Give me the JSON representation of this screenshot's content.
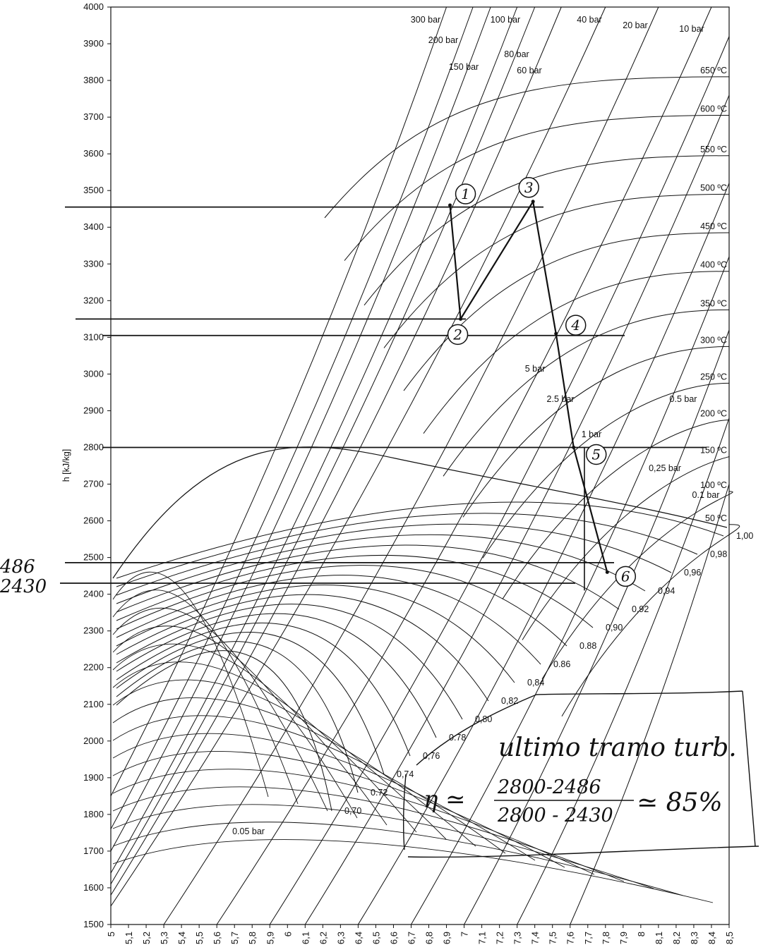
{
  "chart_data": {
    "type": "line",
    "title": "",
    "ylabel": "h [kJ/kg]",
    "xlabel": "",
    "xlim": [
      5.0,
      8.5
    ],
    "ylim": [
      1500,
      4000
    ],
    "x_ticks": [
      "5",
      "5,1",
      "5,2",
      "5,3",
      "5,4",
      "5,5",
      "5,6",
      "5,7",
      "5,8",
      "5,9",
      "6",
      "6,1",
      "6,2",
      "6,3",
      "6,4",
      "6,5",
      "6,6",
      "6,7",
      "6,8",
      "6,9",
      "7",
      "7,1",
      "7,2",
      "7,3",
      "7,4",
      "7,5",
      "7,6",
      "7,7",
      "7,8",
      "7,9",
      "8",
      "8,1",
      "8,2",
      "8,3",
      "8,4",
      "8,5"
    ],
    "y_ticks": [
      "1500",
      "1600",
      "1700",
      "1800",
      "1900",
      "2000",
      "2100",
      "2200",
      "2300",
      "2400",
      "2500",
      "2600",
      "2700",
      "2800",
      "2900",
      "3000",
      "3100",
      "3200",
      "3300",
      "3400",
      "3500",
      "3600",
      "3700",
      "3800",
      "3900",
      "4000"
    ],
    "grid": "off",
    "isobars": [
      {
        "label": "300 bar",
        "s": [
          5.0,
          6.9
        ],
        "h": [
          1850,
          4000
        ]
      },
      {
        "label": "200 bar",
        "s": [
          5.0,
          7.05
        ],
        "h": [
          1760,
          4000
        ]
      },
      {
        "label": "150 bar",
        "s": [
          5.0,
          7.15
        ],
        "h": [
          1700,
          4000
        ]
      },
      {
        "label": "100 bar",
        "s": [
          5.0,
          7.3
        ],
        "h": [
          1640,
          4000
        ]
      },
      {
        "label": "80 bar",
        "s": [
          5.0,
          7.4
        ],
        "h": [
          1610,
          4000
        ]
      },
      {
        "label": "60 bar",
        "s": [
          5.0,
          7.55
        ],
        "h": [
          1580,
          4000
        ]
      },
      {
        "label": "40 bar",
        "s": [
          5.0,
          7.8
        ],
        "h": [
          1550,
          4000
        ]
      },
      {
        "label": "20 bar",
        "s": [
          5.3,
          8.1
        ],
        "h": [
          1500,
          4000
        ]
      },
      {
        "label": "10 bar",
        "s": [
          5.6,
          8.4
        ],
        "h": [
          1500,
          4000
        ]
      },
      {
        "label": "5 bar",
        "s": [
          5.9,
          8.5
        ],
        "h": [
          1500,
          3920
        ]
      },
      {
        "label": "2.5 bar",
        "s": [
          6.1,
          8.5
        ],
        "h": [
          1500,
          3760
        ]
      },
      {
        "label": "1 bar",
        "s": [
          6.4,
          8.5
        ],
        "h": [
          1500,
          3520
        ]
      },
      {
        "label": "0.5 bar",
        "s": [
          6.7,
          8.5
        ],
        "h": [
          1500,
          3320
        ]
      },
      {
        "label": "0,25 bar",
        "s": [
          7.0,
          8.5
        ],
        "h": [
          1500,
          3120
        ]
      },
      {
        "label": "0.1 bar",
        "s": [
          7.3,
          8.5
        ],
        "h": [
          1500,
          2880
        ]
      },
      {
        "label": "0.05 bar",
        "s": [
          7.6,
          8.5
        ],
        "h": [
          1500,
          2700
        ]
      }
    ],
    "isotherms": [
      {
        "label": "650 ºC",
        "h": 3810
      },
      {
        "label": "600 ºC",
        "h": 3705
      },
      {
        "label": "550 ºC",
        "h": 3595
      },
      {
        "label": "500 ºC",
        "h": 3490
      },
      {
        "label": "450 ºC",
        "h": 3385
      },
      {
        "label": "400 ºC",
        "h": 3280
      },
      {
        "label": "350 ºC",
        "h": 3175
      },
      {
        "label": "300 ºC",
        "h": 3075
      },
      {
        "label": "250 ºC",
        "h": 2975
      },
      {
        "label": "200 ºC",
        "h": 2875
      },
      {
        "label": "150 ºC",
        "h": 2775
      },
      {
        "label": "100 ºC",
        "h": 2680
      },
      {
        "label": "50 ºC",
        "h": 2590
      }
    ],
    "quality_labels": [
      "1,00",
      "0,98",
      "0,96",
      "0,94",
      "0,92",
      "0,90",
      "0.88",
      "0.86",
      "0,84",
      "0,82",
      "0,80",
      "0.78",
      "0,76",
      "0,74",
      "0.72",
      "0,70"
    ],
    "process_points": [
      {
        "label": "1",
        "s": 6.92,
        "h": 3460
      },
      {
        "label": "2",
        "s": 6.98,
        "h": 3150
      },
      {
        "label": "3",
        "s": 7.39,
        "h": 3470
      },
      {
        "label": "4",
        "s": 7.52,
        "h": 3110
      },
      {
        "label": "5",
        "s": 7.62,
        "h": 2800
      },
      {
        "label": "6",
        "s": 7.81,
        "h": 2460
      }
    ],
    "reference_enthalpies": [
      3455,
      3150,
      3105,
      2800,
      2486,
      2430
    ],
    "side_notes": [
      "486",
      "2430"
    ],
    "annotation": {
      "title": "ultimo tramo turb.",
      "symbol": "η ≃",
      "numerator": "2800-2486",
      "denominator": "2800 - 2430",
      "result": "≃ 85%"
    }
  }
}
